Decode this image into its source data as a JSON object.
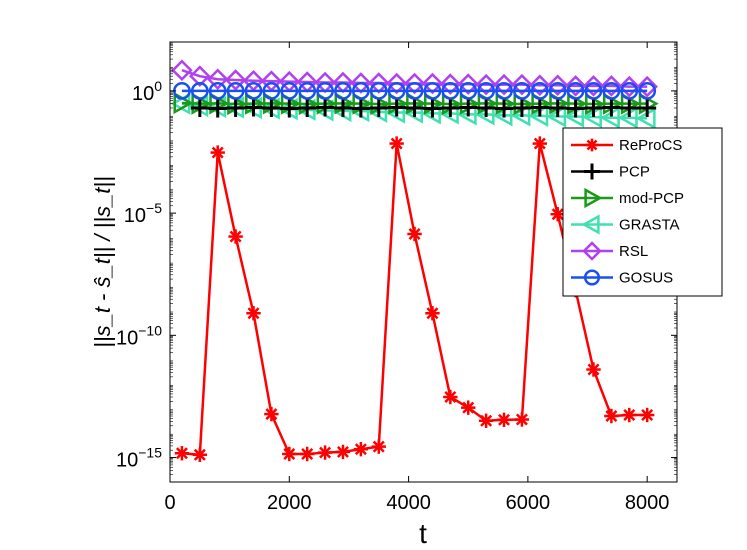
{
  "chart_data": {
    "type": "line",
    "title": "",
    "xlabel": "t",
    "ylabel": "||s_t - ŝ_t|| / ||s_t||",
    "yscale": "log",
    "xlim": [
      0,
      8500
    ],
    "ylim": [
      1e-16,
      100.0
    ],
    "xticks": [
      0,
      2000,
      4000,
      6000,
      8000
    ],
    "xtick_labels": [
      "0",
      "2000",
      "4000",
      "6000",
      "8000"
    ],
    "yticks": [
      1e-15,
      1e-10,
      1e-05,
      1.0
    ],
    "ytick_labels": [
      {
        "base": "10",
        "exp": "−15"
      },
      {
        "base": "10",
        "exp": "−10"
      },
      {
        "base": "10",
        "exp": "−5"
      },
      {
        "base": "10",
        "exp": "0"
      }
    ],
    "legend_position": "right",
    "series": [
      {
        "name": "ReProCS",
        "color": "#ff0000",
        "marker": "asterisk",
        "x": [
          200,
          500,
          800,
          1100,
          1400,
          1700,
          2000,
          2300,
          2600,
          2900,
          3200,
          3500,
          3800,
          4100,
          4400,
          4700,
          5000,
          5300,
          5600,
          5900,
          6200,
          6500,
          6800,
          7100,
          7400,
          7700,
          8000
        ],
        "y": [
          1.5e-15,
          1.3e-15,
          0.003,
          1.1e-06,
          8e-10,
          6e-14,
          1.4e-15,
          1.4e-15,
          1.6e-15,
          1.7e-15,
          2.2e-15,
          2.8e-15,
          0.007,
          1.4e-06,
          8e-10,
          3e-13,
          1.1e-13,
          3.2e-14,
          3.5e-14,
          3.6e-14,
          0.007,
          9e-06,
          7e-09,
          4e-12,
          5e-14,
          5.5e-14,
          5.5e-14
        ]
      },
      {
        "name": "PCP",
        "color": "#000000",
        "marker": "plus",
        "x": [
          500,
          800,
          1100,
          1400,
          1700,
          2000,
          2300,
          2600,
          2900,
          3200,
          3500,
          3800,
          4100,
          4400,
          4700,
          5000,
          5300,
          5600,
          5900,
          6200,
          6500,
          6800,
          7100,
          7400,
          7700,
          8000
        ],
        "y": [
          0.2,
          0.19,
          0.2,
          0.21,
          0.2,
          0.19,
          0.2,
          0.21,
          0.2,
          0.19,
          0.2,
          0.21,
          0.2,
          0.19,
          0.2,
          0.21,
          0.2,
          0.19,
          0.2,
          0.21,
          0.2,
          0.19,
          0.2,
          0.21,
          0.2,
          0.2
        ]
      },
      {
        "name": "mod-PCP",
        "color": "#1a9a1a",
        "marker": "triangle-right",
        "x": [
          200,
          500,
          800,
          1100,
          1400,
          1700,
          2000,
          2300,
          2600,
          2900,
          3200,
          3500,
          3800,
          4100,
          4400,
          4700,
          5000,
          5300,
          5600,
          5900,
          6200,
          6500,
          6800,
          7100,
          7400,
          7700,
          8000
        ],
        "y": [
          0.32,
          0.3,
          0.31,
          0.29,
          0.3,
          0.31,
          0.3,
          0.29,
          0.3,
          0.31,
          0.3,
          0.29,
          0.3,
          0.31,
          0.3,
          0.29,
          0.3,
          0.31,
          0.3,
          0.29,
          0.3,
          0.31,
          0.3,
          0.29,
          0.3,
          0.3,
          0.3
        ]
      },
      {
        "name": "GRASTA",
        "color": "#40e0b0",
        "marker": "triangle-left",
        "x": [
          200,
          500,
          800,
          1100,
          1400,
          1700,
          2000,
          2300,
          2600,
          2900,
          3200,
          3500,
          3800,
          4100,
          4400,
          4700,
          5000,
          5300,
          5600,
          5900,
          6200,
          6500,
          6800,
          7100,
          7400,
          7700,
          8000
        ],
        "y": [
          0.3,
          0.24,
          0.22,
          0.21,
          0.2,
          0.19,
          0.18,
          0.17,
          0.16,
          0.15,
          0.15,
          0.14,
          0.13,
          0.13,
          0.12,
          0.12,
          0.11,
          0.11,
          0.1,
          0.1,
          0.095,
          0.09,
          0.09,
          0.085,
          0.08,
          0.08,
          0.075
        ]
      },
      {
        "name": "RSL",
        "color": "#b040f0",
        "marker": "diamond",
        "x": [
          200,
          500,
          800,
          1100,
          1400,
          1700,
          2000,
          2300,
          2600,
          2900,
          3200,
          3500,
          3800,
          4100,
          4400,
          4700,
          5000,
          5300,
          5600,
          5900,
          6200,
          6500,
          6800,
          7100,
          7400,
          7700,
          8000
        ],
        "y": [
          7,
          4,
          3,
          2.8,
          2.6,
          2.5,
          2.4,
          2.3,
          2.2,
          2.2,
          2.1,
          2.1,
          2.0,
          2.0,
          2.0,
          1.9,
          1.9,
          1.8,
          1.8,
          1.8,
          1.7,
          1.7,
          1.6,
          1.6,
          1.6,
          1.5,
          1.5
        ]
      },
      {
        "name": "GOSUS",
        "color": "#1a50f0",
        "marker": "circle",
        "x": [
          200,
          500,
          800,
          1100,
          1400,
          1700,
          2000,
          2300,
          2600,
          2900,
          3200,
          3500,
          3800,
          4100,
          4400,
          4700,
          5000,
          5300,
          5600,
          5900,
          6200,
          6500,
          6800,
          7100,
          7400,
          7700,
          8000
        ],
        "y": [
          1,
          1,
          1,
          1,
          1,
          1,
          1,
          1,
          1,
          1,
          1,
          1,
          1,
          1,
          1,
          1,
          1,
          1,
          1,
          1,
          1,
          1,
          1,
          1,
          1,
          1,
          1
        ]
      }
    ]
  }
}
